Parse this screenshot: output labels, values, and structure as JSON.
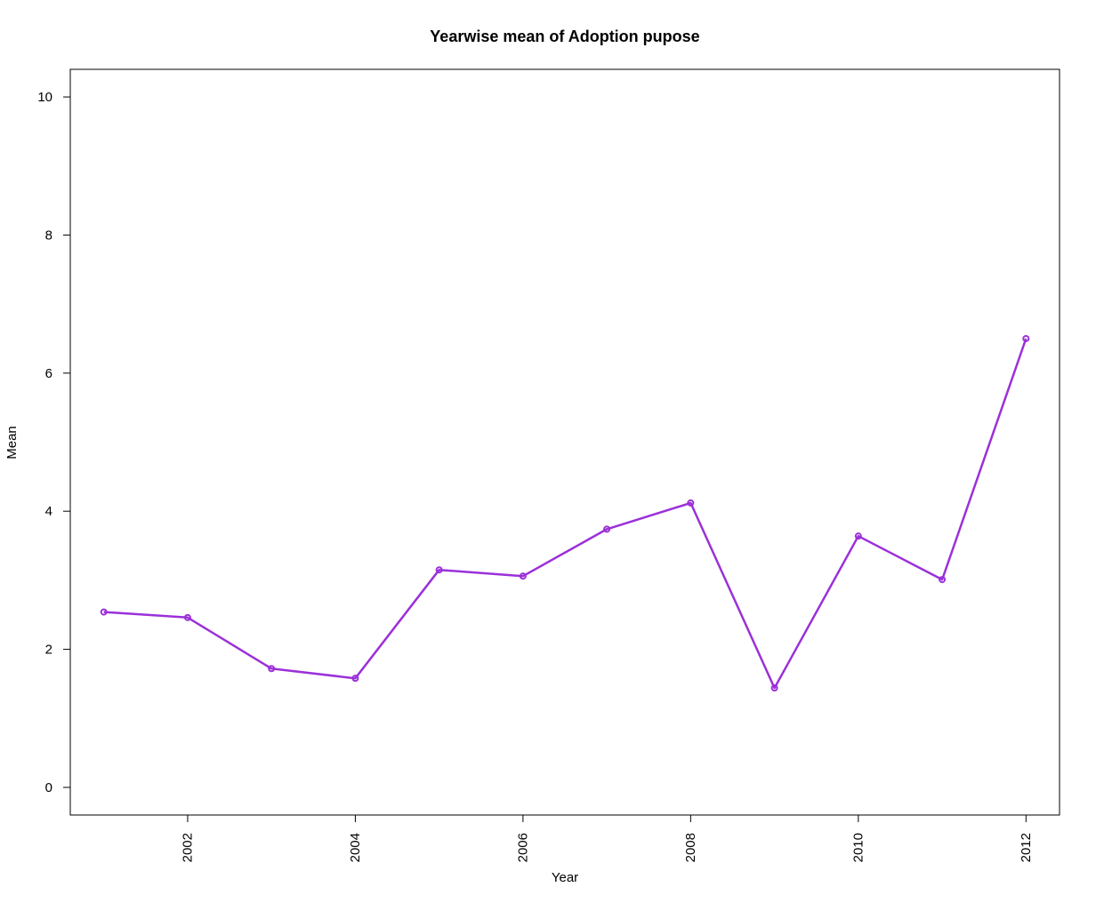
{
  "chart_data": {
    "type": "line",
    "title": "Yearwise mean of Adoption pupose",
    "xlabel": "Year",
    "ylabel": "Mean",
    "x": [
      2001,
      2002,
      2003,
      2004,
      2005,
      2006,
      2007,
      2008,
      2009,
      2010,
      2011,
      2012
    ],
    "series": [
      {
        "values": [
          2.54,
          2.46,
          1.72,
          1.58,
          3.15,
          3.06,
          3.74,
          4.12,
          1.44,
          3.64,
          3.01,
          6.5
        ],
        "color": "#9b30d9"
      }
    ],
    "xticks": [
      2002,
      2004,
      2006,
      2008,
      2010,
      2012
    ],
    "yticks": [
      0,
      2,
      4,
      6,
      8,
      10
    ],
    "xlim": [
      2000.6,
      2012.4
    ],
    "ylim": [
      -0.4,
      10.4
    ],
    "grid": false,
    "legend": "none"
  }
}
